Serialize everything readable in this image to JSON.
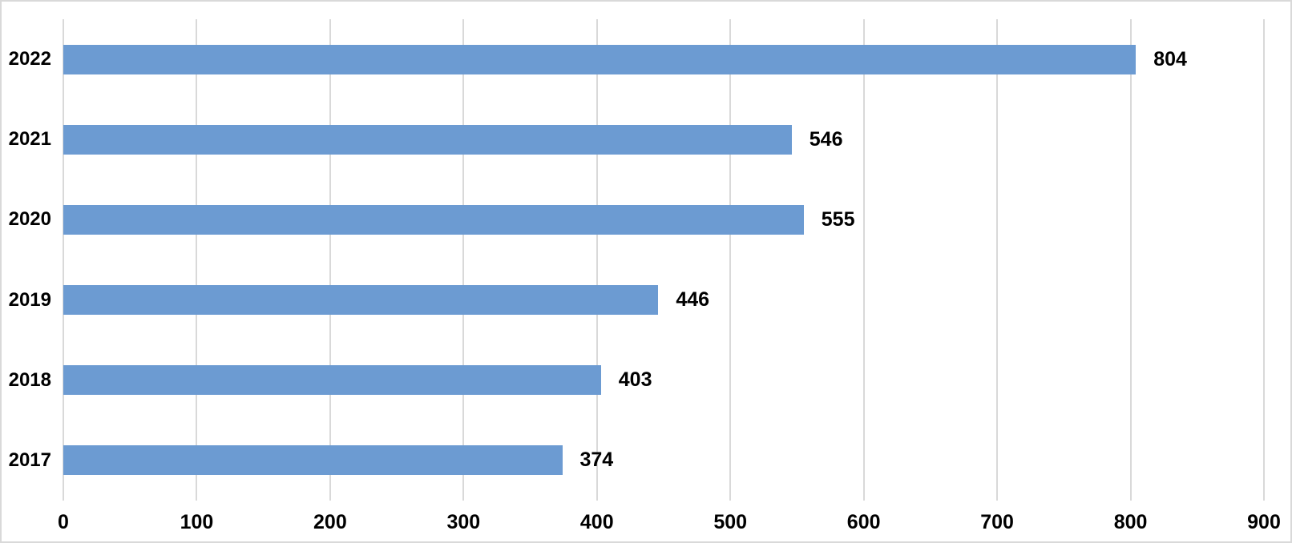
{
  "chart_data": {
    "type": "bar",
    "orientation": "horizontal",
    "title": "",
    "xlabel": "",
    "ylabel": "",
    "categories": [
      "2022",
      "2021",
      "2020",
      "2019",
      "2018",
      "2017"
    ],
    "values": [
      804,
      546,
      555,
      446,
      403,
      374
    ],
    "xlim": [
      0,
      900
    ],
    "x_ticks": [
      0,
      100,
      200,
      300,
      400,
      500,
      600,
      700,
      800,
      900
    ],
    "grid": true,
    "legend": false,
    "data_labels": true,
    "colors": {
      "bar": "#6c9bd2",
      "gridline": "#d9d9d9",
      "border": "#d9d9d9",
      "label_text": "#000000",
      "background": "#ffffff"
    }
  }
}
